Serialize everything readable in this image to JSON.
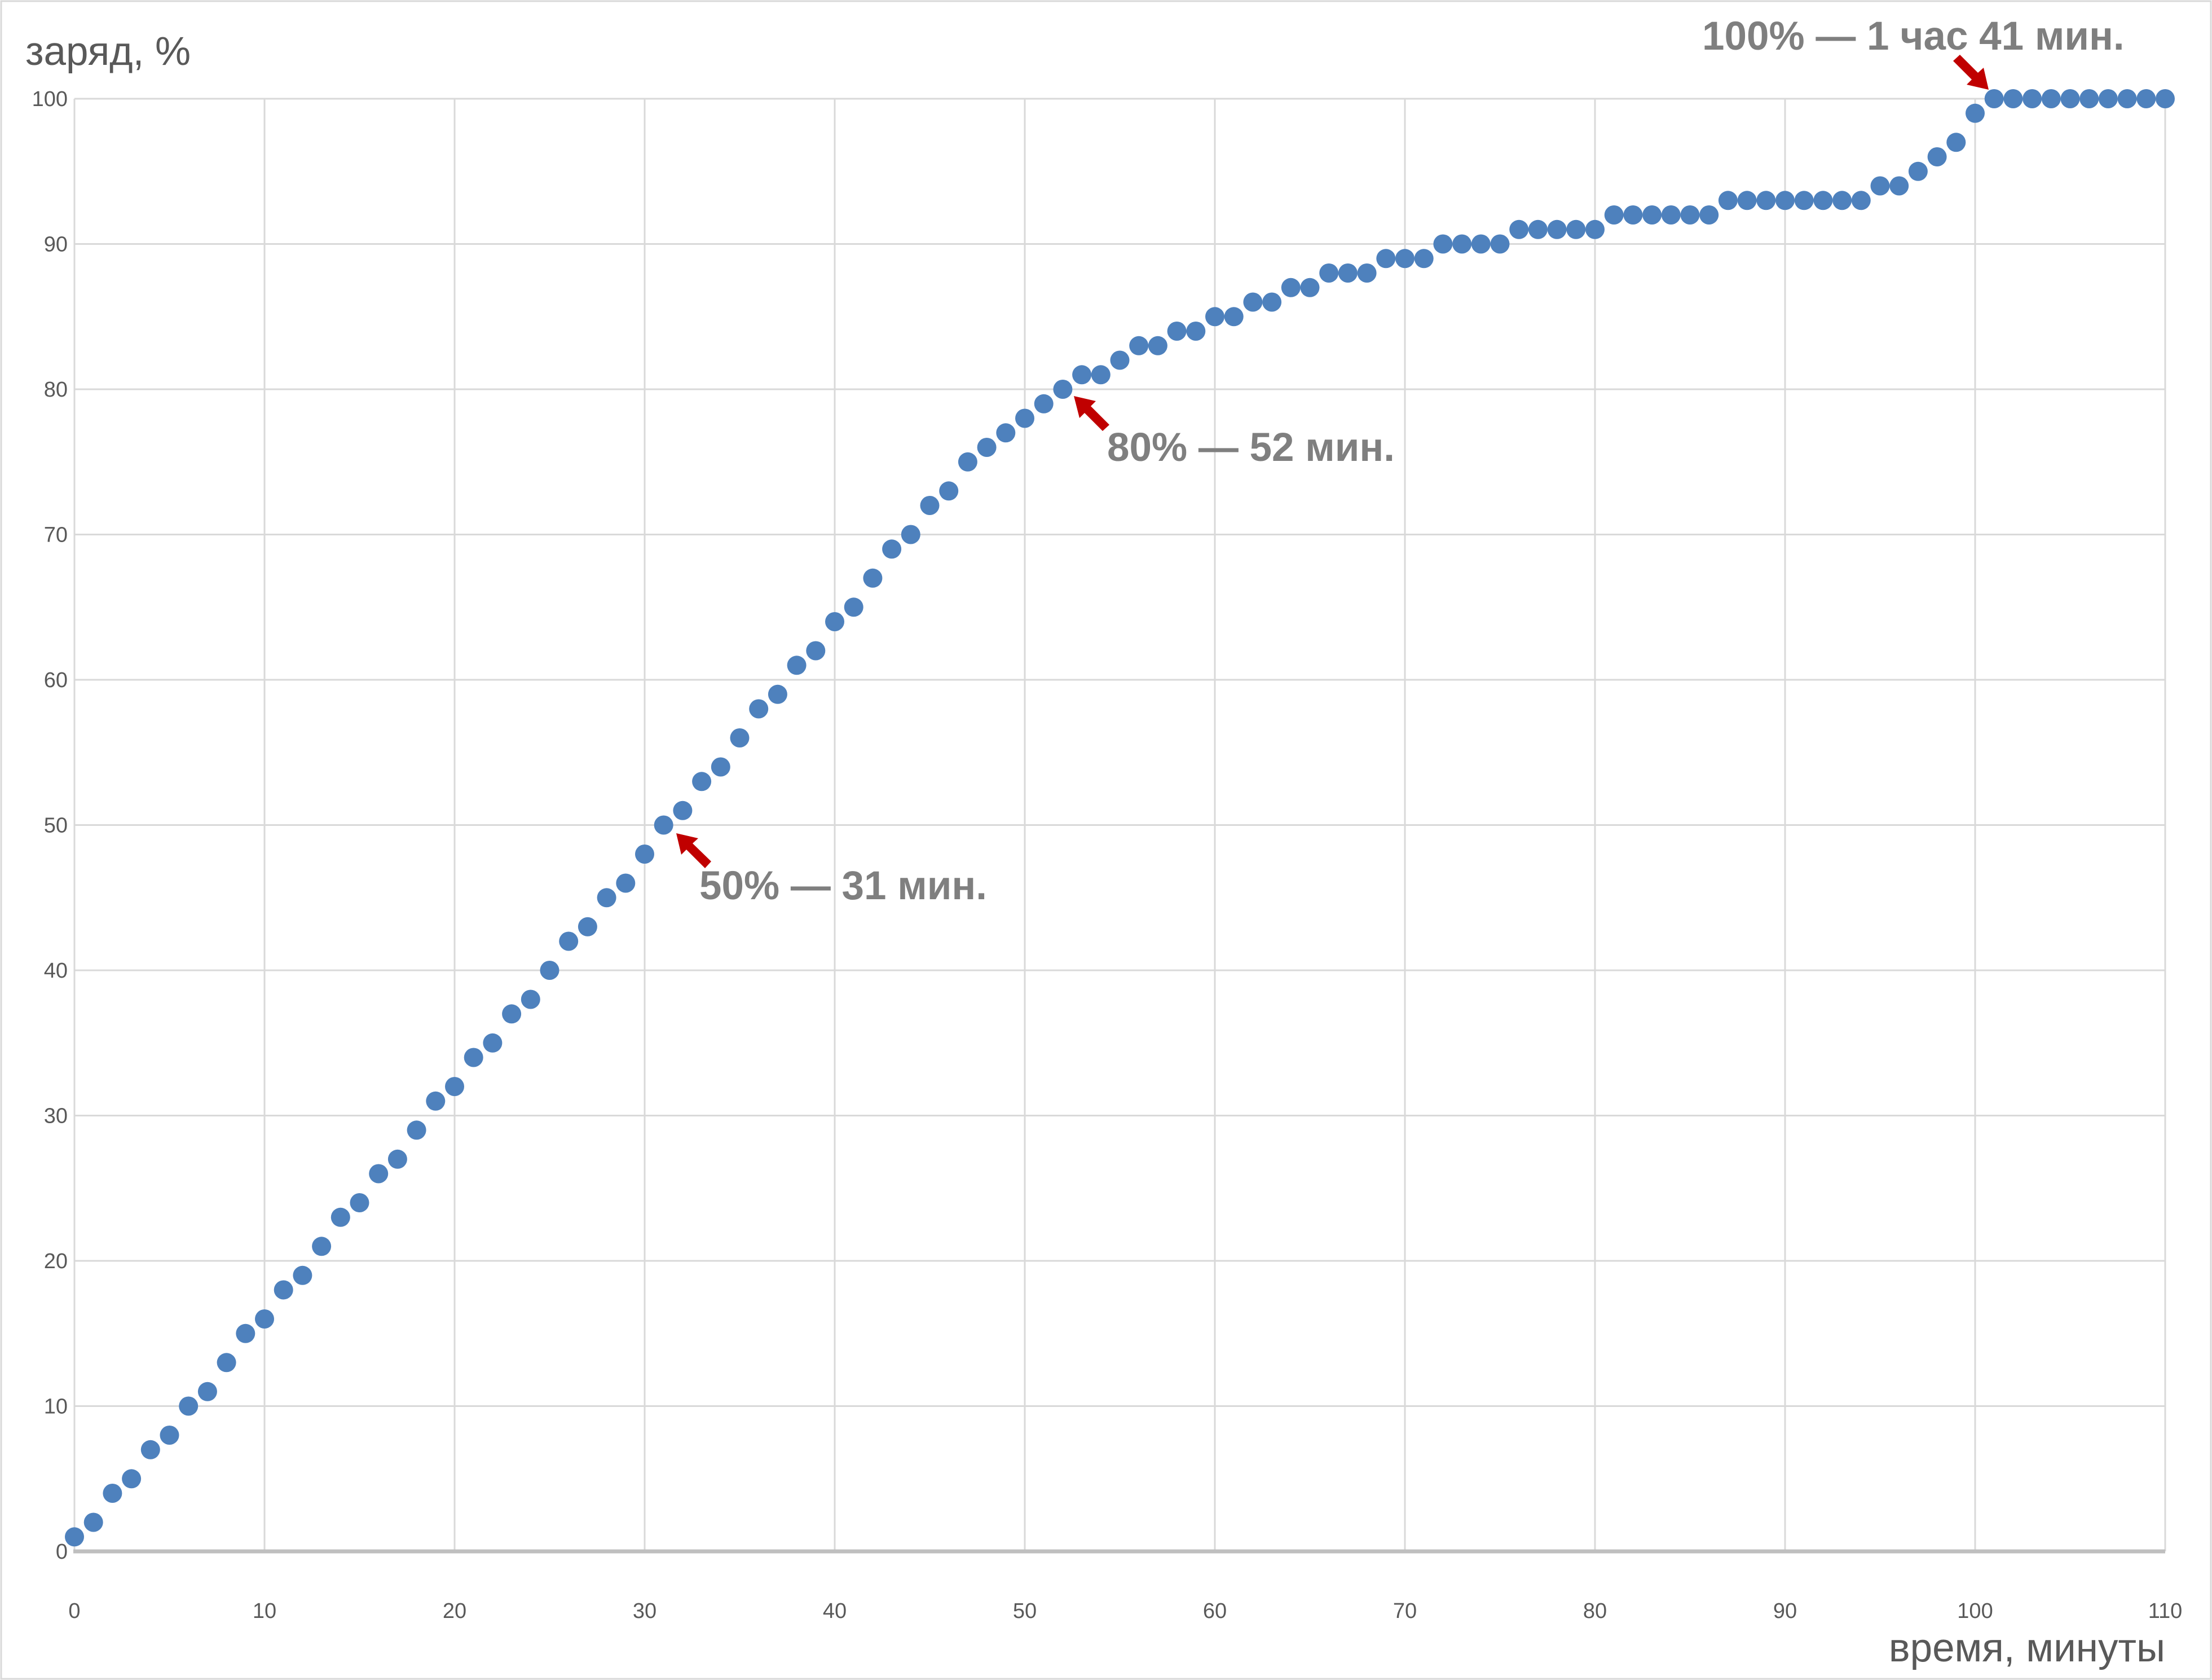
{
  "page": {
    "background": "#FFFFFF",
    "border_color": "#D9D9D9"
  },
  "chart_data": {
    "type": "scatter",
    "title": "",
    "xlabel": "время, минуты",
    "ylabel": "заряд, %",
    "xlim": [
      0,
      110
    ],
    "ylim": [
      0,
      100
    ],
    "x_ticks": [
      0,
      10,
      20,
      30,
      40,
      50,
      60,
      70,
      80,
      90,
      100,
      110
    ],
    "y_ticks": [
      0,
      10,
      20,
      30,
      40,
      50,
      60,
      70,
      80,
      90,
      100
    ],
    "grid": true,
    "legend": false,
    "series": [
      {
        "x": [
          0,
          1,
          2,
          3,
          4,
          5,
          6,
          7,
          8,
          9,
          10,
          11,
          12,
          13,
          14,
          15,
          16,
          17,
          18,
          19,
          20,
          21,
          22,
          23,
          24,
          25,
          26,
          27,
          28,
          29,
          30,
          31,
          32,
          33,
          34,
          35,
          36,
          37,
          38,
          39,
          40,
          41,
          42,
          43,
          44,
          45,
          46,
          47,
          48,
          49,
          50,
          51,
          52,
          53,
          54,
          55,
          56,
          57,
          58,
          59,
          60,
          61,
          62,
          63,
          64,
          65,
          66,
          67,
          68,
          69,
          70,
          71,
          72,
          73,
          74,
          75,
          76,
          77,
          78,
          79,
          80,
          81,
          82,
          83,
          84,
          85,
          86,
          87,
          88,
          89,
          90,
          91,
          92,
          93,
          94,
          95,
          96,
          97,
          98,
          99,
          100,
          101,
          102,
          103,
          104,
          105,
          106,
          107,
          108,
          109,
          110
        ],
        "values": [
          1,
          2,
          4,
          5,
          7,
          8,
          10,
          11,
          13,
          15,
          16,
          18,
          19,
          21,
          23,
          24,
          26,
          27,
          29,
          31,
          32,
          34,
          35,
          37,
          38,
          40,
          42,
          43,
          45,
          46,
          48,
          50,
          51,
          53,
          54,
          56,
          58,
          59,
          61,
          62,
          64,
          65,
          67,
          69,
          70,
          72,
          73,
          75,
          76,
          77,
          78,
          79,
          80,
          81,
          81,
          82,
          83,
          83,
          84,
          84,
          85,
          85,
          86,
          86,
          87,
          87,
          88,
          88,
          88,
          89,
          89,
          89,
          90,
          90,
          90,
          90,
          91,
          91,
          91,
          91,
          91,
          92,
          92,
          92,
          92,
          92,
          92,
          93,
          93,
          93,
          93,
          93,
          93,
          93,
          93,
          94,
          94,
          95,
          96,
          97,
          99,
          100,
          100,
          100,
          100,
          100,
          100,
          100,
          100,
          100,
          100
        ]
      }
    ],
    "annotations": [
      {
        "text": "50% — 31 мин.",
        "x": 31,
        "y": 50
      },
      {
        "text": "80% — 52 мин.",
        "x": 52,
        "y": 80
      },
      {
        "text": "100% — 1 час 41 мин.",
        "x": 101,
        "y": 100
      }
    ],
    "colors": {
      "points": "#4E81BD",
      "annotation_arrow": "#C00000",
      "annotation_text": "#7F7F7F",
      "grid": "#D9D9D9",
      "axis": "#BFBFBF",
      "tick_text": "#595959",
      "axis_title_text": "#595959"
    }
  }
}
